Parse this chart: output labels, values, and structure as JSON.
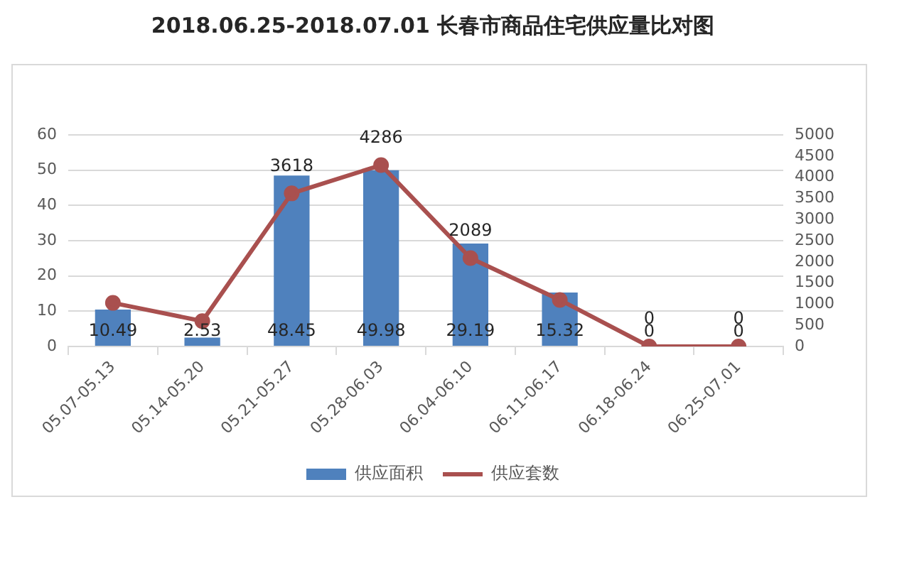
{
  "chart_data": {
    "type": "bar",
    "title": "2018.06.25-2018.07.01 长春市商品住宅供应量比对图",
    "categories": [
      "05.07-05.13",
      "05.14-05.20",
      "05.21-05.27",
      "05.28-06.03",
      "06.04-06.10",
      "06.11-06.17",
      "06.18-06.24",
      "06.25-07.01"
    ],
    "series": [
      {
        "name": "供应面积",
        "color": "#4f81bd",
        "values": [
          10.49,
          2.53,
          48.45,
          49.98,
          29.19,
          15.32,
          0,
          0
        ],
        "value_labels": [
          "10.49",
          "2.53",
          "48.45",
          "49.98",
          "29.19",
          "15.32",
          "0",
          "0"
        ]
      },
      {
        "name": "供应套数",
        "type": "line",
        "axis": "y2",
        "color": "#a9504f",
        "values": [
          1030,
          600,
          3618,
          4286,
          2089,
          1100,
          0,
          0
        ],
        "value_labels": [
          null,
          null,
          "3618",
          "4286",
          "2089",
          null,
          "0",
          "0"
        ]
      }
    ],
    "ylim": [
      0,
      60
    ],
    "yticks": [
      0,
      10,
      20,
      30,
      40,
      50,
      60
    ],
    "y2lim": [
      0,
      5000
    ],
    "y2ticks": [
      0,
      500,
      1000,
      1500,
      2000,
      2500,
      3000,
      3500,
      4000,
      4500,
      5000
    ],
    "grid": "y",
    "legend": "bottom",
    "marker": "circle"
  }
}
